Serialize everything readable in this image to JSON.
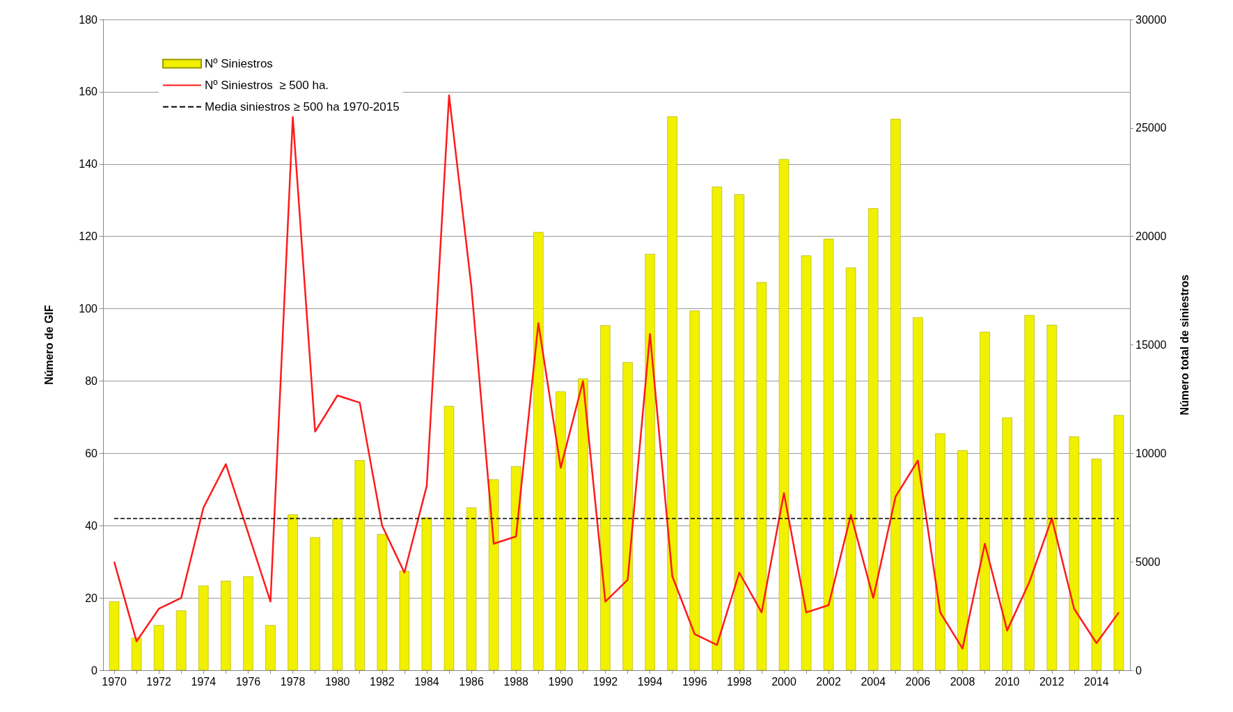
{
  "chart_data": {
    "type": "bar",
    "xlabel": null,
    "ylabel": "Número de GIF",
    "y2label": "Número total de siniestros",
    "categories": [
      "1970",
      null,
      "1972",
      null,
      "1974",
      null,
      "1976",
      null,
      "1978",
      null,
      "1980",
      null,
      "1982",
      null,
      "1984",
      null,
      "1986",
      null,
      "1988",
      null,
      "1990",
      null,
      "1992",
      null,
      "1994",
      null,
      "1996",
      null,
      "1998",
      null,
      "2000",
      null,
      "2002",
      null,
      "2004",
      null,
      "2006",
      null,
      "2008",
      null,
      "2010",
      null,
      "2012",
      null,
      "2014",
      null
    ],
    "series": [
      {
        "name": "Nº Siniestros",
        "type": "bar",
        "axis": "y2",
        "color": "#f0f000",
        "values": [
          3170,
          1500,
          2080,
          2750,
          3900,
          4120,
          4330,
          2080,
          7180,
          6130,
          7000,
          9680,
          6270,
          4580,
          7040,
          12180,
          7500,
          8800,
          9400,
          20200,
          12850,
          13450,
          15900,
          14200,
          19190,
          25530,
          16580,
          22290,
          21940,
          17890,
          23560,
          19120,
          19890,
          18560,
          21300,
          25420,
          16270,
          10920,
          10140,
          15600,
          11650,
          16370,
          15920,
          10770,
          9750,
          11760
        ]
      },
      {
        "name": "Nº Siniestros  ≥ 500 ha.",
        "type": "line",
        "color": "#ff1a1a",
        "marker": "none",
        "line_style": "solid",
        "values": [
          30,
          8,
          17,
          20,
          45,
          57,
          38,
          19,
          153,
          66,
          76,
          74,
          40,
          27,
          51,
          159,
          106,
          35,
          37,
          96,
          56,
          80,
          19,
          25,
          93,
          26,
          10,
          7,
          27,
          16,
          49,
          16,
          18,
          43,
          20,
          48,
          58,
          16,
          6,
          35,
          11,
          24.5,
          42,
          17,
          7.5,
          16
        ]
      }
    ],
    "ref_lines": [
      {
        "axis": "y",
        "value": 42,
        "label": "Media siniestros ≥ 500 ha 1970-2015",
        "color": "#000000",
        "line_style": "dashed"
      }
    ],
    "ylim": [
      0,
      180
    ],
    "yticks": [
      0,
      20,
      40,
      60,
      80,
      100,
      120,
      140,
      160,
      180
    ],
    "y2lim": [
      0,
      30000
    ],
    "y2ticks": [
      0,
      5000,
      10000,
      15000,
      20000,
      25000,
      30000
    ],
    "grid": "y",
    "legend": "top left"
  }
}
